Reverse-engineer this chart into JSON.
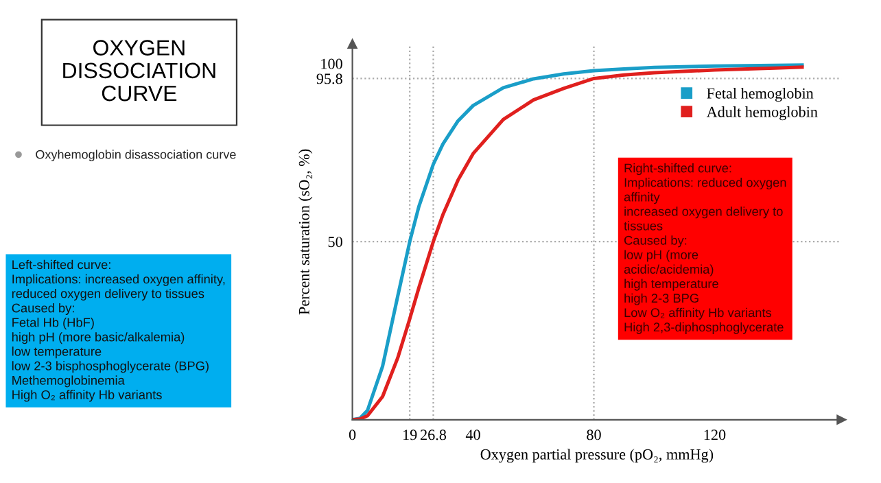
{
  "chart_data": {
    "type": "line",
    "title": "OXYGEN DISSOCIATION CURVE",
    "subtitle": "Oxyhemoglobin disassociation curve",
    "xlabel": "Oxygen partial pressure (pO₂, mmHg)",
    "ylabel": "Percent saturation (sO₂, %)",
    "x": [
      0,
      2.5,
      5,
      10,
      15,
      19,
      22,
      26.8,
      30,
      35,
      40,
      50,
      60,
      70,
      80,
      90,
      100,
      120,
      140,
      149
    ],
    "series": [
      {
        "name": "Fetal hemoglobin",
        "color": "#1a9ec8",
        "values": [
          0,
          0.4,
          2.6,
          15.0,
          34.6,
          50,
          59.8,
          71.7,
          77.4,
          83.9,
          88.2,
          93.2,
          95.7,
          97.1,
          98.0,
          98.5,
          98.9,
          99.3,
          99.5,
          99.6
        ]
      },
      {
        "name": "Adult hemoglobin",
        "color": "#e0201e",
        "values": [
          0,
          0.2,
          1.1,
          6.5,
          17.3,
          28.3,
          37.0,
          50,
          57.6,
          67.3,
          74.7,
          84.3,
          89.8,
          93.0,
          95.8,
          96.8,
          97.4,
          98.2,
          98.7,
          99.0
        ]
      }
    ],
    "xlim": [
      0,
      162
    ],
    "ylim": [
      0,
      105.5
    ],
    "xticks": [
      0,
      19,
      26.8,
      40,
      80,
      120
    ],
    "yticks": [
      50,
      95.8,
      100
    ],
    "ref_lines": [
      {
        "axis": "y",
        "value": 95.8,
        "color": "#aaaaaa",
        "line_style": "dotted"
      },
      {
        "axis": "y",
        "value": 50,
        "color": "#aaaaaa",
        "line_style": "dotted"
      },
      {
        "axis": "x",
        "value": 19,
        "color": "#aaaaaa",
        "line_style": "dotted"
      },
      {
        "axis": "x",
        "value": 26.8,
        "color": "#aaaaaa",
        "line_style": "dotted"
      },
      {
        "axis": "x",
        "value": 80,
        "color": "#aaaaaa",
        "line_style": "dotted"
      }
    ],
    "legend": "top right",
    "grid": false,
    "marker": "none",
    "line_style": "solid",
    "annotations": [
      "Left-shifted curve:\nImplications: increased oxygen affinity,\nreduced oxygen delivery to tissues\nCaused by:\nFetal Hb (HbF)\nhigh pH (more basic/alkalemia)\nlow temperature\nlow 2-3 bisphosphoglycerate (BPG)\nMethemoglobinemia\nHigh O₂ affinity Hb variants",
      "Right-shifted curve:\nImplications: reduced oxygen\naffinity\nincreased oxygen delivery to\ntissues\nCaused by:\nlow pH (more\nacidic/acidemia)\nhigh temperature\nhigh 2-3 BPG\nLow O₂ affinity Hb variants\nHigh 2,3-diphosphoglycerate"
    ]
  }
}
